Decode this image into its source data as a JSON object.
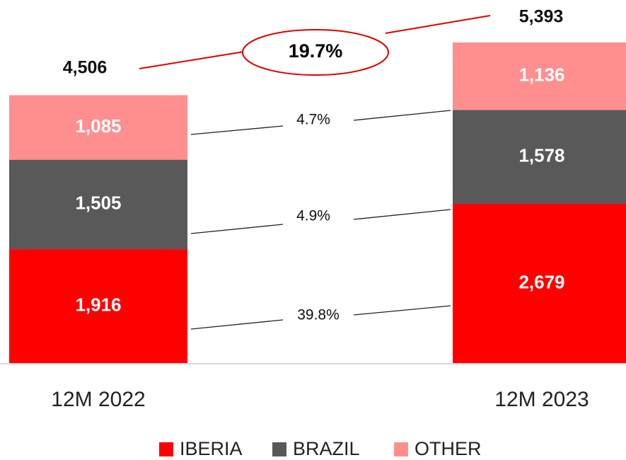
{
  "chart_data": {
    "type": "stacked_bar",
    "categories": [
      "12M 2022",
      "12M 2023"
    ],
    "series": [
      {
        "name": "IBERIA",
        "color": "#ff0000",
        "values": [
          1916,
          2679
        ],
        "value_labels": [
          "1,916",
          "2,679"
        ]
      },
      {
        "name": "BRAZIL",
        "color": "#595959",
        "values": [
          1505,
          1578
        ],
        "value_labels": [
          "1,505",
          "1,578"
        ]
      },
      {
        "name": "OTHER",
        "color": "#ff8f8f",
        "values": [
          1085,
          1136
        ],
        "value_labels": [
          "1,085",
          "1,136"
        ]
      }
    ],
    "totals": [
      4506,
      5393
    ],
    "total_labels": [
      "4,506",
      "5,393"
    ],
    "annotations": [
      "19.7%",
      "4.7%",
      "4.9%",
      "39.8%"
    ]
  }
}
